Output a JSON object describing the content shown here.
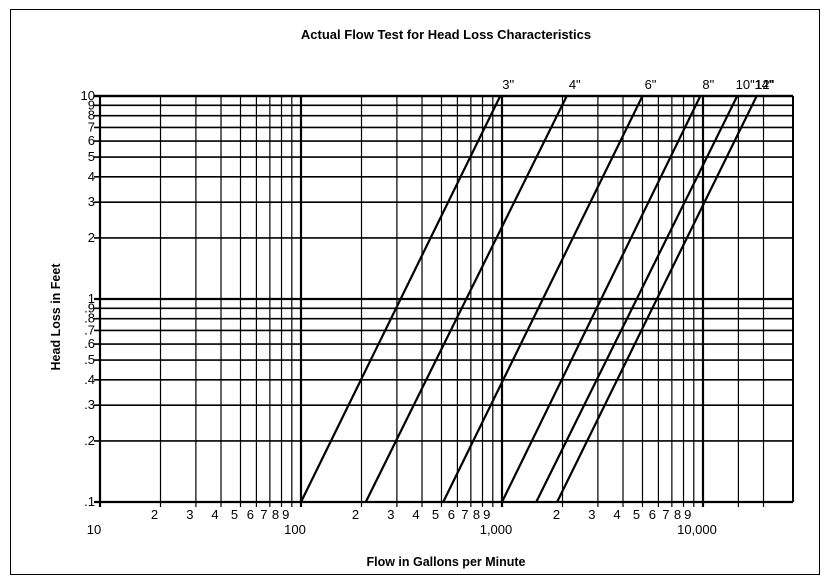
{
  "chart_data": {
    "type": "line",
    "title": "Actual Flow Test for Head Loss Characteristics",
    "xlabel": "Flow in Gallons per Minute",
    "ylabel": "Head Loss in Feet",
    "x_scale": "log",
    "y_scale": "log",
    "xlim": [
      10,
      30000
    ],
    "ylim": [
      0.1,
      10
    ],
    "grid": true,
    "x_tick_labels": [
      {
        "value": 10,
        "label": "10"
      },
      {
        "value": 20,
        "label": "2"
      },
      {
        "value": 30,
        "label": "3"
      },
      {
        "value": 40,
        "label": "4"
      },
      {
        "value": 50,
        "label": "5"
      },
      {
        "value": 60,
        "label": "6"
      },
      {
        "value": 70,
        "label": "7"
      },
      {
        "value": 80,
        "label": "8"
      },
      {
        "value": 90,
        "label": "9"
      },
      {
        "value": 100,
        "label": "100"
      },
      {
        "value": 200,
        "label": "2"
      },
      {
        "value": 300,
        "label": "3"
      },
      {
        "value": 400,
        "label": "4"
      },
      {
        "value": 500,
        "label": "5"
      },
      {
        "value": 600,
        "label": "6"
      },
      {
        "value": 700,
        "label": "7"
      },
      {
        "value": 800,
        "label": "8"
      },
      {
        "value": 900,
        "label": "9"
      },
      {
        "value": 1000,
        "label": "1,000"
      },
      {
        "value": 2000,
        "label": "2"
      },
      {
        "value": 3000,
        "label": "3"
      },
      {
        "value": 4000,
        "label": "4"
      },
      {
        "value": 5000,
        "label": "5"
      },
      {
        "value": 6000,
        "label": "6"
      },
      {
        "value": 7000,
        "label": "7"
      },
      {
        "value": 8000,
        "label": "8"
      },
      {
        "value": 9000,
        "label": "9"
      },
      {
        "value": 10000,
        "label": "10,000"
      }
    ],
    "y_tick_labels": [
      {
        "value": 0.1,
        "label": ".1"
      },
      {
        "value": 0.2,
        "label": ".2"
      },
      {
        "value": 0.3,
        "label": ".3"
      },
      {
        "value": 0.4,
        "label": ".4"
      },
      {
        "value": 0.5,
        "label": ".5"
      },
      {
        "value": 0.6,
        "label": ".6"
      },
      {
        "value": 0.7,
        "label": ".7"
      },
      {
        "value": 0.8,
        "label": ".8"
      },
      {
        "value": 0.9,
        "label": ".9"
      },
      {
        "value": 1,
        "label": "1"
      },
      {
        "value": 2,
        "label": "2"
      },
      {
        "value": 3,
        "label": "3"
      },
      {
        "value": 4,
        "label": "4"
      },
      {
        "value": 5,
        "label": "5"
      },
      {
        "value": 6,
        "label": "6"
      },
      {
        "value": 7,
        "label": "7"
      },
      {
        "value": 8,
        "label": "8"
      },
      {
        "value": 9,
        "label": "9"
      },
      {
        "value": 10,
        "label": "10"
      }
    ],
    "series": [
      {
        "name": "3\"",
        "x": [
          100,
          980
        ],
        "y": [
          0.1,
          10
        ]
      },
      {
        "name": "4\"",
        "x": [
          210,
          2100
        ],
        "y": [
          0.1,
          10
        ]
      },
      {
        "name": "6\"",
        "x": [
          510,
          5000
        ],
        "y": [
          0.1,
          10
        ]
      },
      {
        "name": "8\"",
        "x": [
          1000,
          9700
        ],
        "y": [
          0.1,
          10
        ]
      },
      {
        "name": "10\"",
        "x": [
          1480,
          14800
        ],
        "y": [
          0.1,
          10
        ]
      },
      {
        "name": "12\"",
        "x": [
          1880,
          18500
        ],
        "y": [
          0.1,
          10
        ]
      }
    ],
    "series_label_only": [
      "14\""
    ]
  }
}
